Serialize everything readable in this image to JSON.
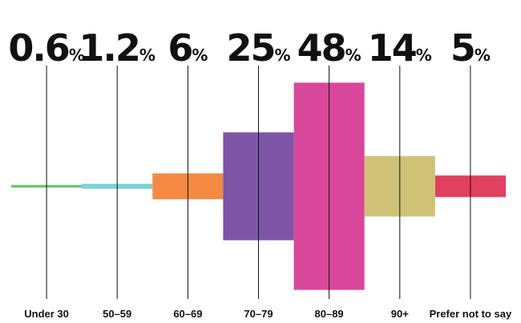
{
  "chart_data": {
    "type": "bar",
    "categories": [
      "Under 30",
      "50–59",
      "60–69",
      "70–79",
      "80–89",
      "90+",
      "Prefer not to say"
    ],
    "values": [
      0.6,
      1.2,
      6,
      25,
      48,
      14,
      5
    ],
    "value_labels": [
      "0.6",
      "1.2",
      "6",
      "25",
      "48",
      "14",
      "5"
    ],
    "unit": "%",
    "colors": [
      "#6abf69",
      "#7fd3d6",
      "#f48a42",
      "#7d55a6",
      "#d9479a",
      "#cfc277",
      "#e1405f"
    ],
    "orientation": "centered-vertical",
    "grid": false
  }
}
